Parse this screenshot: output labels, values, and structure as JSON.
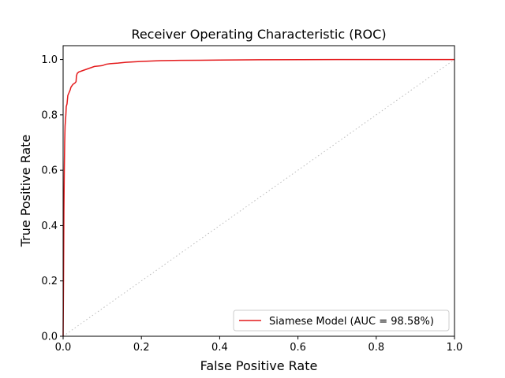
{
  "chart_data": {
    "type": "line",
    "title": "Receiver Operating Characteristic (ROC)",
    "xlabel": "False Positive Rate",
    "ylabel": "True Positive Rate",
    "xlim": [
      0.0,
      1.0
    ],
    "ylim": [
      0.0,
      1.05
    ],
    "x_ticks": [
      "0.0",
      "0.2",
      "0.4",
      "0.6",
      "0.8",
      "1.0"
    ],
    "y_ticks": [
      "0.0",
      "0.2",
      "0.4",
      "0.6",
      "0.8",
      "1.0"
    ],
    "grid": false,
    "legend_position": "lower-right",
    "series": [
      {
        "name": "Siamese Model (AUC = 98.58%)",
        "color": "#e41a1c",
        "x": [
          0.0,
          0.001,
          0.002,
          0.003,
          0.004,
          0.005,
          0.007,
          0.008,
          0.01,
          0.012,
          0.015,
          0.018,
          0.02,
          0.025,
          0.03,
          0.033,
          0.034,
          0.036,
          0.04,
          0.05,
          0.06,
          0.07,
          0.08,
          0.1,
          0.11,
          0.12,
          0.14,
          0.16,
          0.2,
          0.25,
          0.3,
          0.4,
          0.5,
          0.7,
          1.0
        ],
        "y": [
          0.0,
          0.2,
          0.45,
          0.6,
          0.7,
          0.76,
          0.8,
          0.83,
          0.84,
          0.87,
          0.88,
          0.89,
          0.9,
          0.91,
          0.915,
          0.92,
          0.94,
          0.95,
          0.955,
          0.96,
          0.965,
          0.97,
          0.975,
          0.978,
          0.983,
          0.985,
          0.987,
          0.99,
          0.993,
          0.996,
          0.997,
          0.998,
          0.999,
          1.0,
          1.0
        ]
      },
      {
        "name": "",
        "color": "#bbbbbb",
        "style": "dotted",
        "x": [
          0.0,
          1.0
        ],
        "y": [
          0.0,
          1.0
        ]
      }
    ]
  }
}
